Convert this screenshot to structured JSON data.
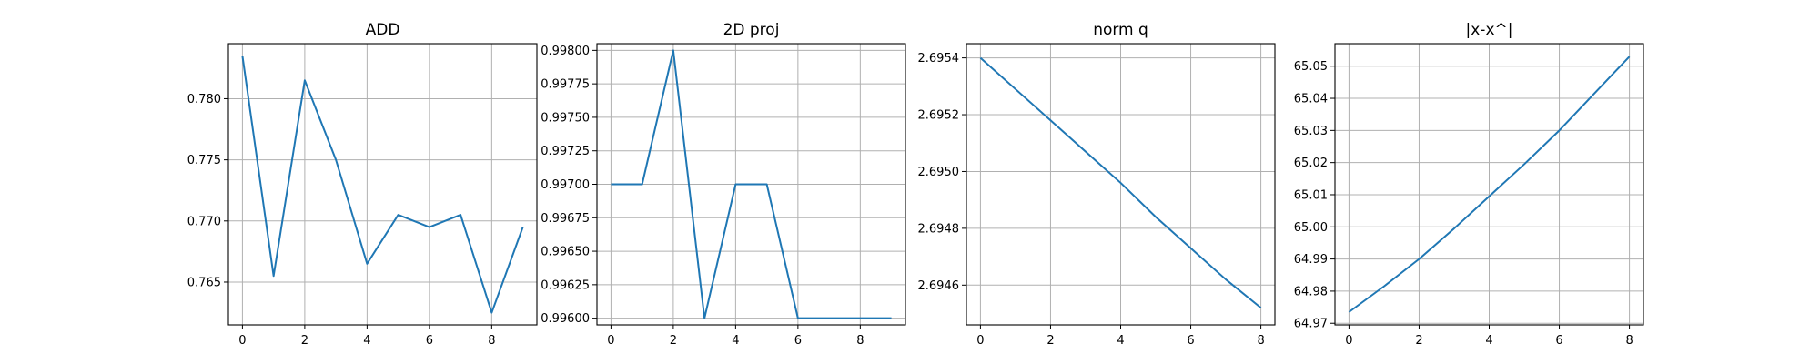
{
  "chart_data": [
    {
      "type": "line",
      "title": "ADD",
      "x": [
        0,
        1,
        2,
        3,
        4,
        5,
        6,
        7,
        8,
        9
      ],
      "series": [
        {
          "values": [
            0.7835,
            0.7655,
            0.7815,
            0.775,
            0.7665,
            0.7705,
            0.7695,
            0.7705,
            0.7625,
            0.7695
          ]
        }
      ],
      "xlim": [
        -0.45,
        9.45
      ],
      "ylim": [
        0.7615,
        0.7845
      ],
      "xticks": [
        0,
        2,
        4,
        6,
        8
      ],
      "xtick_labels": [
        "0",
        "2",
        "4",
        "6",
        "8"
      ],
      "yticks": [
        0.765,
        0.77,
        0.775,
        0.78
      ],
      "ytick_labels": [
        "0.765",
        "0.770",
        "0.775",
        "0.780"
      ],
      "grid": true
    },
    {
      "type": "line",
      "title": "2D proj",
      "x": [
        0,
        1,
        2,
        3,
        4,
        5,
        6,
        7,
        8,
        9
      ],
      "series": [
        {
          "values": [
            0.997,
            0.997,
            0.998,
            0.996,
            0.997,
            0.997,
            0.996,
            0.996,
            0.996,
            0.996
          ]
        }
      ],
      "xlim": [
        -0.45,
        9.45
      ],
      "ylim": [
        0.99595,
        0.99805
      ],
      "xticks": [
        0,
        2,
        4,
        6,
        8
      ],
      "xtick_labels": [
        "0",
        "2",
        "4",
        "6",
        "8"
      ],
      "yticks": [
        0.996,
        0.99625,
        0.9965,
        0.99675,
        0.997,
        0.99725,
        0.9975,
        0.99775,
        0.998
      ],
      "ytick_labels": [
        "0.99600",
        "0.99625",
        "0.99650",
        "0.99675",
        "0.99700",
        "0.99725",
        "0.99750",
        "0.99775",
        "0.99800"
      ],
      "grid": true
    },
    {
      "type": "line",
      "title": "norm q",
      "x": [
        0,
        1,
        2,
        3,
        4,
        5,
        6,
        7,
        8
      ],
      "series": [
        {
          "values": [
            2.6954,
            2.69529,
            2.69518,
            2.69507,
            2.69496,
            2.69484,
            2.69473,
            2.69462,
            2.69452
          ]
        }
      ],
      "xlim": [
        -0.4,
        8.4
      ],
      "ylim": [
        2.69446,
        2.69545
      ],
      "xticks": [
        0,
        2,
        4,
        6,
        8
      ],
      "xtick_labels": [
        "0",
        "2",
        "4",
        "6",
        "8"
      ],
      "yticks": [
        2.6946,
        2.6948,
        2.695,
        2.6952,
        2.6954
      ],
      "ytick_labels": [
        "2.6946",
        "2.6948",
        "2.6950",
        "2.6952",
        "2.6954"
      ],
      "grid": true
    },
    {
      "type": "line",
      "title": "|x-x^|",
      "x": [
        0,
        1,
        2,
        3,
        4,
        5,
        6,
        7,
        8
      ],
      "series": [
        {
          "values": [
            64.9735,
            64.9815,
            64.99,
            64.9995,
            65.0095,
            65.0195,
            65.03,
            65.0415,
            65.053
          ]
        }
      ],
      "xlim": [
        -0.4,
        8.4
      ],
      "ylim": [
        64.9695,
        65.057
      ],
      "xticks": [
        0,
        2,
        4,
        6,
        8
      ],
      "xtick_labels": [
        "0",
        "2",
        "4",
        "6",
        "8"
      ],
      "yticks": [
        64.97,
        64.98,
        64.99,
        65.0,
        65.01,
        65.02,
        65.03,
        65.04,
        65.05
      ],
      "ytick_labels": [
        "64.97",
        "64.98",
        "64.99",
        "65.00",
        "65.01",
        "65.02",
        "65.03",
        "65.04",
        "65.05"
      ],
      "grid": true
    }
  ]
}
